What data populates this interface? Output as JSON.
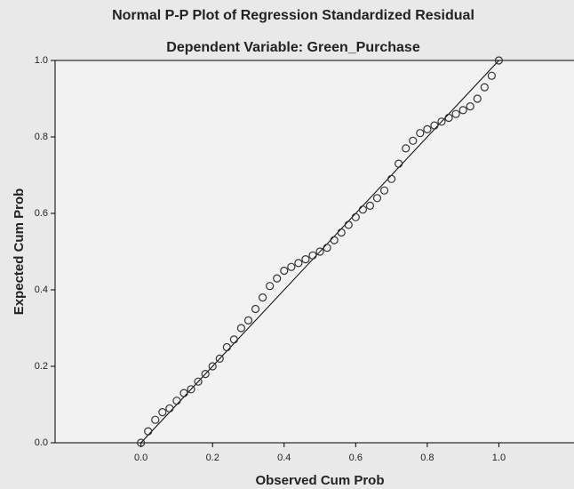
{
  "chart_data": {
    "type": "scatter",
    "title": "Normal P-P Plot of Regression Standardized Residual",
    "subtitle": "Dependent Variable: Green_Purchase",
    "x_label": "Observed Cum Prob",
    "y_label": "Expected Cum Prob",
    "xlim": [
      -0.24,
      1.21
    ],
    "ylim": [
      0,
      1
    ],
    "xticks": [
      {
        "value": 0,
        "label": "0.0"
      },
      {
        "value": 0.2,
        "label": "0.2"
      },
      {
        "value": 0.4,
        "label": "0.4"
      },
      {
        "value": 0.6,
        "label": "0.6"
      },
      {
        "value": 0.8,
        "label": "0.8"
      },
      {
        "value": 1,
        "label": "1.0"
      }
    ],
    "yticks": [
      {
        "value": 0,
        "label": "0.0"
      },
      {
        "value": 0.2,
        "label": "0.2"
      },
      {
        "value": 0.4,
        "label": "0.4"
      },
      {
        "value": 0.6,
        "label": "0.6"
      },
      {
        "value": 0.8,
        "label": "0.8"
      },
      {
        "value": 1,
        "label": "1.0"
      }
    ],
    "color": "#333333",
    "x": [
      0.0,
      0.02,
      0.04,
      0.06,
      0.08,
      0.1,
      0.12,
      0.14,
      0.16,
      0.18,
      0.2,
      0.22,
      0.24,
      0.26,
      0.28,
      0.3,
      0.32,
      0.34,
      0.36,
      0.38,
      0.4,
      0.42,
      0.44,
      0.46,
      0.48,
      0.5,
      0.52,
      0.54,
      0.56,
      0.58,
      0.6,
      0.62,
      0.64,
      0.66,
      0.68,
      0.7,
      0.72,
      0.74,
      0.76,
      0.78,
      0.8,
      0.82,
      0.84,
      0.86,
      0.88,
      0.9,
      0.92,
      0.94,
      0.96,
      0.98,
      1.0
    ],
    "values": [
      0.0,
      0.03,
      0.06,
      0.08,
      0.09,
      0.11,
      0.13,
      0.14,
      0.16,
      0.18,
      0.2,
      0.22,
      0.25,
      0.27,
      0.3,
      0.32,
      0.35,
      0.38,
      0.41,
      0.43,
      0.45,
      0.46,
      0.47,
      0.48,
      0.49,
      0.5,
      0.51,
      0.53,
      0.55,
      0.57,
      0.59,
      0.61,
      0.62,
      0.64,
      0.66,
      0.69,
      0.73,
      0.77,
      0.79,
      0.81,
      0.82,
      0.83,
      0.84,
      0.85,
      0.86,
      0.87,
      0.88,
      0.9,
      0.93,
      0.96,
      1.0
    ],
    "reference_line": {
      "x": [
        0,
        1
      ],
      "values": [
        0,
        1
      ]
    }
  }
}
